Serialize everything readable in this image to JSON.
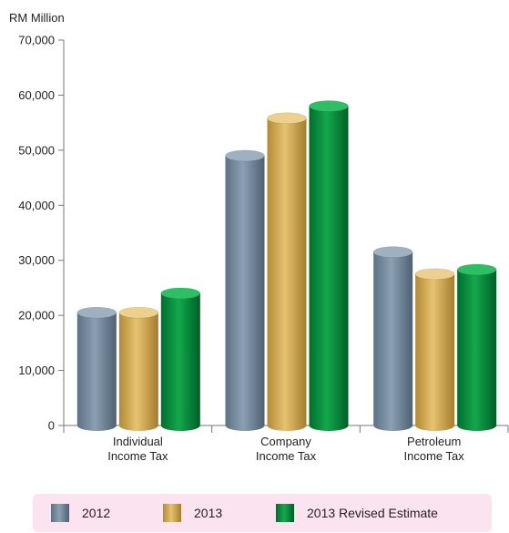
{
  "chart_data": {
    "type": "bar",
    "ylabel": "RM Million",
    "ylim": [
      0,
      70000
    ],
    "yticks": [
      0,
      10000,
      20000,
      30000,
      40000,
      50000,
      60000,
      70000
    ],
    "ytick_labels": [
      "0",
      "10,000",
      "20,000",
      "30,000",
      "40,000",
      "50,000",
      "60,000",
      "70,000"
    ],
    "categories": [
      [
        "Individual",
        "Income Tax"
      ],
      [
        "Company",
        "Income Tax"
      ],
      [
        "Petroleum",
        "Income Tax"
      ]
    ],
    "series": [
      {
        "name": "2012",
        "values": [
          20500,
          49000,
          31500
        ],
        "color": "#6e8497"
      },
      {
        "name": "2013",
        "values": [
          20500,
          55800,
          27500
        ],
        "color": "#c9a24e"
      },
      {
        "name": "2013 Revised Estimate",
        "values": [
          24000,
          58000,
          28300
        ],
        "color": "#0a8a3e"
      }
    ],
    "legend": "bottom",
    "grid": false
  }
}
